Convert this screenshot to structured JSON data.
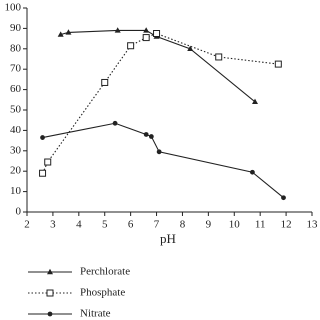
{
  "chart_data": {
    "type": "line",
    "x_label": "pH",
    "xlim": [
      2,
      13
    ],
    "xticks": [
      2,
      3,
      4,
      5,
      6,
      7,
      8,
      9,
      10,
      11,
      12,
      13
    ],
    "ylim": [
      0,
      100
    ],
    "yticks": [
      0,
      10,
      20,
      30,
      40,
      50,
      60,
      70,
      80,
      90,
      100
    ],
    "series": [
      {
        "name": "Perchlorate",
        "color": "#222222",
        "style": "solid",
        "marker": "triangle",
        "x": [
          3.3,
          3.6,
          5.5,
          6.6,
          7.0,
          8.3,
          10.8
        ],
        "values": [
          87,
          88,
          89,
          89,
          86,
          80,
          54
        ]
      },
      {
        "name": "Phosphate",
        "color": "#222222",
        "style": "dotted",
        "marker": "square",
        "x": [
          2.6,
          2.8,
          5.0,
          6.0,
          6.6,
          7.0,
          9.4,
          11.7
        ],
        "values": [
          19,
          24.5,
          63.5,
          81.5,
          85.5,
          87.5,
          76,
          72.5
        ]
      },
      {
        "name": "Nitrate",
        "color": "#222222",
        "style": "solid",
        "marker": "circle",
        "x": [
          2.6,
          5.4,
          6.6,
          6.8,
          7.1,
          10.7,
          11.9
        ],
        "values": [
          36.5,
          43.5,
          38,
          37,
          29.5,
          19.5,
          7
        ]
      }
    ]
  }
}
